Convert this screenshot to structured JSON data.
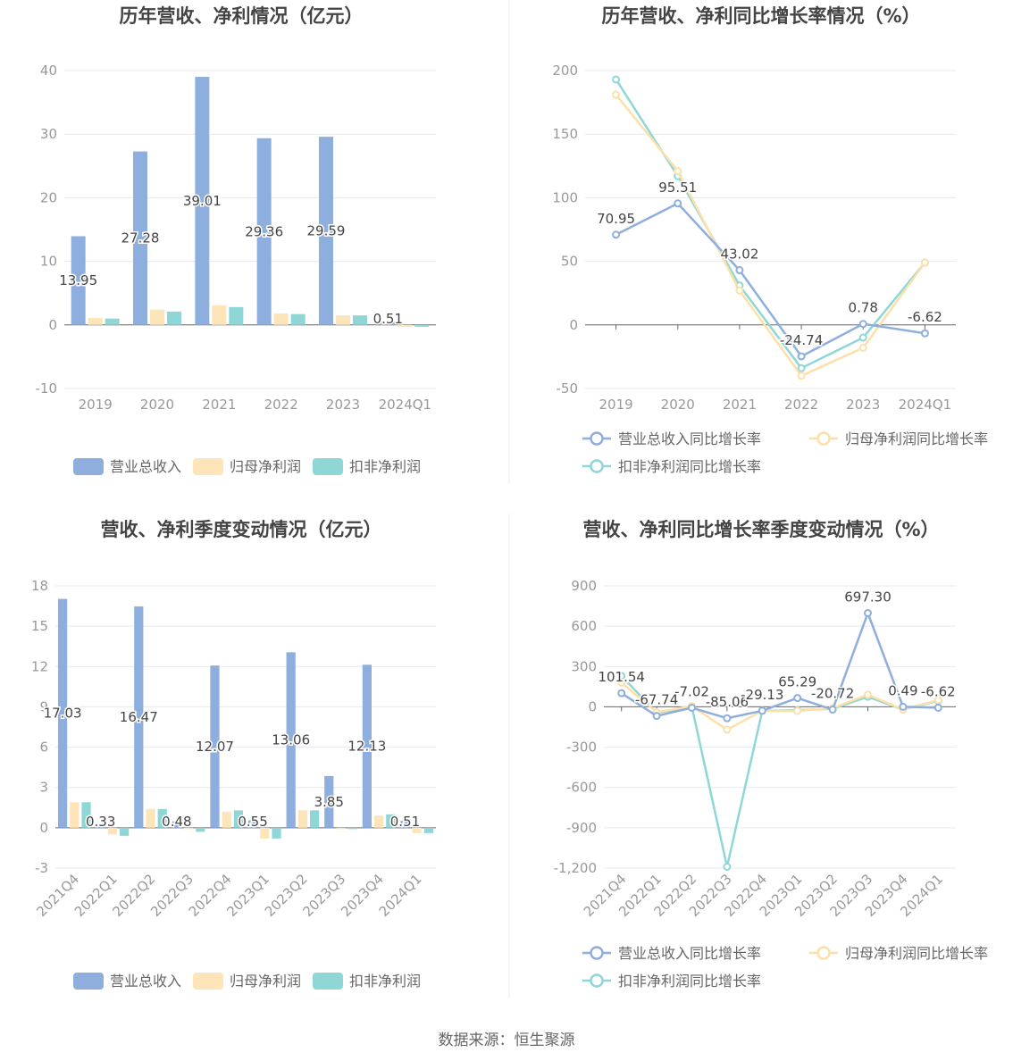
{
  "colors": {
    "revenue": "#8eaede",
    "net_profit": "#fde5b9",
    "deducted_profit": "#8fd7d7",
    "grid": "#e6e9f0",
    "axis_text": "#999999",
    "label_text": "#444444",
    "title_text": "#444444"
  },
  "footer": {
    "source": "数据来源：恒生聚源"
  },
  "chart_data": [
    {
      "id": "annual-bar",
      "type": "bar",
      "title": "历年营收、净利情况（亿元）",
      "categories": [
        "2019",
        "2020",
        "2021",
        "2022",
        "2023",
        "2024Q1"
      ],
      "ylim": [
        -10,
        40
      ],
      "yticks": [
        -10,
        0,
        10,
        20,
        30,
        40
      ],
      "series": [
        {
          "name": "营业总收入",
          "values": [
            13.95,
            27.28,
            39.01,
            29.36,
            29.59,
            0.51
          ],
          "labels": [
            "13.95",
            "27.28",
            "39.01",
            "29.36",
            "29.59",
            "0.51"
          ]
        },
        {
          "name": "归母净利润",
          "values": [
            1.1,
            2.4,
            3.1,
            1.8,
            1.5,
            -0.3
          ]
        },
        {
          "name": "扣非净利润",
          "values": [
            1.0,
            2.1,
            2.8,
            1.7,
            1.5,
            -0.3
          ]
        }
      ],
      "legend": [
        "营业总收入",
        "归母净利润",
        "扣非净利润"
      ]
    },
    {
      "id": "annual-line",
      "type": "line",
      "title": "历年营收、净利同比增长率情况（%）",
      "categories": [
        "2019",
        "2020",
        "2021",
        "2022",
        "2023",
        "2024Q1"
      ],
      "ylim": [
        -50,
        200
      ],
      "yticks": [
        -50,
        0,
        50,
        100,
        150,
        200
      ],
      "series": [
        {
          "name": "营业总收入同比增长率",
          "values": [
            70.95,
            95.51,
            43.02,
            -24.74,
            0.78,
            -6.62
          ],
          "labels": [
            "70.95",
            "95.51",
            "43.02",
            "-24.74",
            "0.78",
            "-6.62"
          ]
        },
        {
          "name": "归母净利润同比增长率",
          "values": [
            181,
            121,
            27,
            -40,
            -18,
            49
          ]
        },
        {
          "name": "扣非净利润同比增长率",
          "values": [
            193,
            117,
            31,
            -34,
            -10,
            49
          ]
        }
      ],
      "legend": [
        "营业总收入同比增长率",
        "归母净利润同比增长率",
        "扣非净利润同比增长率"
      ]
    },
    {
      "id": "quarter-bar",
      "type": "bar",
      "title": "营收、净利季度变动情况（亿元）",
      "categories": [
        "2021Q4",
        "2022Q1",
        "2022Q2",
        "2022Q3",
        "2022Q4",
        "2023Q1",
        "2023Q2",
        "2023Q3",
        "2023Q4",
        "2024Q1"
      ],
      "ylim": [
        -3,
        18
      ],
      "yticks": [
        -3,
        0,
        3,
        6,
        9,
        12,
        15,
        18
      ],
      "series": [
        {
          "name": "营业总收入",
          "values": [
            17.03,
            0.33,
            16.47,
            0.48,
            12.07,
            0.55,
            13.06,
            3.85,
            12.13,
            0.51
          ],
          "labels": [
            "17.03",
            "0.33",
            "16.47",
            "0.48",
            "12.07",
            "0.55",
            "13.06",
            "3.85",
            "12.13",
            "0.51"
          ]
        },
        {
          "name": "归母净利润",
          "values": [
            1.9,
            -0.5,
            1.4,
            -0.1,
            1.2,
            -0.8,
            1.3,
            -0.1,
            0.9,
            -0.4
          ]
        },
        {
          "name": "扣非净利润",
          "values": [
            1.9,
            -0.6,
            1.4,
            -0.3,
            1.3,
            -0.8,
            1.3,
            -0.1,
            1.0,
            -0.4
          ]
        }
      ],
      "legend": [
        "营业总收入",
        "归母净利润",
        "扣非净利润"
      ]
    },
    {
      "id": "quarter-line",
      "type": "line",
      "title": "营收、净利同比增长率季度变动情况（%）",
      "categories": [
        "2021Q4",
        "2022Q1",
        "2022Q2",
        "2022Q3",
        "2022Q4",
        "2023Q1",
        "2023Q2",
        "2023Q3",
        "2023Q4",
        "2024Q1"
      ],
      "ylim": [
        -1200,
        900
      ],
      "yticks": [
        -1200,
        -900,
        -600,
        -300,
        0,
        300,
        600,
        900
      ],
      "ytick_labels": [
        "-1,200",
        "-900",
        "-600",
        "-300",
        "0",
        "300",
        "600",
        "900"
      ],
      "series": [
        {
          "name": "营业总收入同比增长率",
          "values": [
            101.54,
            -67.74,
            -7.02,
            -85.06,
            -29.13,
            65.29,
            -20.72,
            697.3,
            0.49,
            -6.62
          ],
          "labels": [
            "101.54",
            "-67.74",
            "-7.02",
            "-85.06",
            "-29.13",
            "65.29",
            "-20.72",
            "697.30",
            "0.49",
            "-6.62"
          ]
        },
        {
          "name": "归母净利润同比增长率",
          "values": [
            180,
            -40,
            5,
            -170,
            -30,
            -30,
            -10,
            90,
            -20,
            50
          ]
        },
        {
          "name": "扣非净利润同比增长率",
          "values": [
            230,
            -45,
            0,
            -1190,
            -30,
            -25,
            -15,
            75,
            -20,
            45
          ]
        }
      ],
      "legend": [
        "营业总收入同比增长率",
        "归母净利润同比增长率",
        "扣非净利润同比增长率"
      ]
    }
  ]
}
